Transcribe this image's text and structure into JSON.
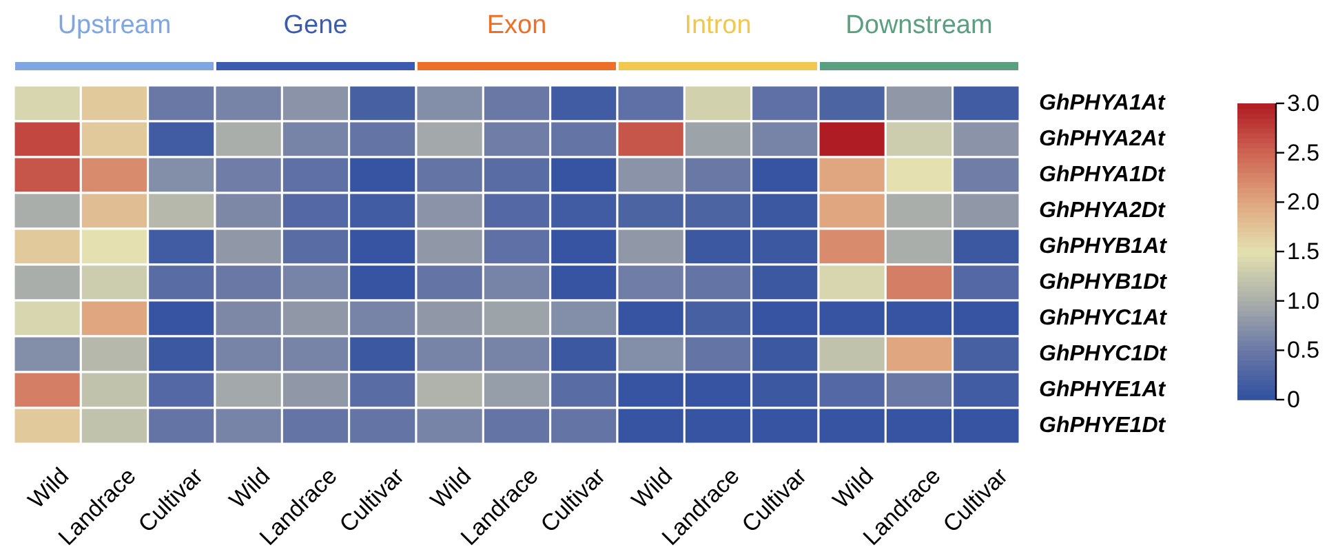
{
  "chart_data": {
    "type": "heatmap",
    "annotations": [
      "Upstream",
      "Gene",
      "Exon",
      "Intron",
      "Downstream"
    ],
    "categories": [
      "Wild",
      "Landrace",
      "Cultivar",
      "Wild",
      "Landrace",
      "Cultivar",
      "Wild",
      "Landrace",
      "Cultivar",
      "Wild",
      "Landrace",
      "Cultivar",
      "Wild",
      "Landrace",
      "Cultivar"
    ],
    "y_categories": [
      "GhPHYA1At",
      "GhPHYA2At",
      "GhPHYA1Dt",
      "GhPHYA2Dt",
      "GhPHYB1At",
      "GhPHYB1Dt",
      "GhPHYC1At",
      "GhPHYC1Dt",
      "GhPHYE1At",
      "GhPHYE1Dt"
    ],
    "cells": [
      [
        1.4,
        1.7,
        0.5,
        0.6,
        0.75,
        0.2,
        0.7,
        0.5,
        0.15,
        0.4,
        1.35,
        0.4,
        0.25,
        0.8,
        0.15
      ],
      [
        2.7,
        1.7,
        0.15,
        1.0,
        0.6,
        0.45,
        0.95,
        0.55,
        0.45,
        2.6,
        0.9,
        0.6,
        3.0,
        1.3,
        0.75
      ],
      [
        2.6,
        2.2,
        0.7,
        0.55,
        0.4,
        0.05,
        0.45,
        0.35,
        0.05,
        0.75,
        0.5,
        0.05,
        2.0,
        1.5,
        0.55
      ],
      [
        1.0,
        1.8,
        1.1,
        0.65,
        0.3,
        0.15,
        0.75,
        0.3,
        0.15,
        0.25,
        0.25,
        0.1,
        2.0,
        1.0,
        0.8
      ],
      [
        1.7,
        1.5,
        0.15,
        0.8,
        0.35,
        0.05,
        0.8,
        0.4,
        0.05,
        0.8,
        0.1,
        0.1,
        2.2,
        1.0,
        0.1
      ],
      [
        1.0,
        1.3,
        0.35,
        0.5,
        0.6,
        0.05,
        0.45,
        0.6,
        0.05,
        0.55,
        0.45,
        0.1,
        1.4,
        2.3,
        0.3
      ],
      [
        1.4,
        2.0,
        0.05,
        0.65,
        0.8,
        0.6,
        0.8,
        0.9,
        0.7,
        0.05,
        0.2,
        0.05,
        0.05,
        0.05,
        0.05
      ],
      [
        0.7,
        1.1,
        0.1,
        0.6,
        0.6,
        0.1,
        0.6,
        0.6,
        0.1,
        0.7,
        0.45,
        0.1,
        1.2,
        2.0,
        0.2
      ],
      [
        2.3,
        1.2,
        0.3,
        0.95,
        0.8,
        0.35,
        1.05,
        0.85,
        0.35,
        0.05,
        0.05,
        0.1,
        0.3,
        0.5,
        0.15
      ],
      [
        1.7,
        1.2,
        0.45,
        0.6,
        0.45,
        0.45,
        0.6,
        0.45,
        0.45,
        0.05,
        0.05,
        0.05,
        0.05,
        0.05,
        0.05
      ]
    ],
    "clim": [
      0,
      3
    ],
    "cticks": [
      0,
      0.5,
      {
        "value": 1,
        "label": "1.0"
      },
      1.5,
      {
        "value": 2,
        "label": "2.0"
      },
      2.5,
      {
        "value": 3,
        "label": "3.0"
      }
    ]
  }
}
